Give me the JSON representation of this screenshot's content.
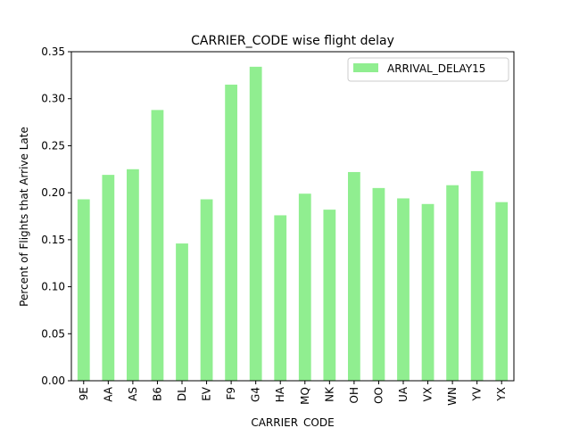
{
  "chart_data": {
    "type": "bar",
    "title": "CARRIER_CODE wise flight delay",
    "xlabel": "CARRIER_CODE",
    "ylabel": "Percent of Flights that Arrive Late",
    "categories": [
      "9E",
      "AA",
      "AS",
      "B6",
      "DL",
      "EV",
      "F9",
      "G4",
      "HA",
      "MQ",
      "NK",
      "OH",
      "OO",
      "UA",
      "VX",
      "WN",
      "YV",
      "YX"
    ],
    "series": [
      {
        "name": "ARRIVAL_DELAY15",
        "color": "#90ee90",
        "values": [
          0.193,
          0.219,
          0.225,
          0.288,
          0.146,
          0.193,
          0.315,
          0.334,
          0.176,
          0.199,
          0.182,
          0.222,
          0.205,
          0.194,
          0.188,
          0.208,
          0.223,
          0.19
        ]
      }
    ],
    "ylim": [
      0,
      0.35
    ],
    "yticks": [
      "0.00",
      "0.05",
      "0.10",
      "0.15",
      "0.20",
      "0.25",
      "0.30",
      "0.35"
    ],
    "legend_position": "top-right",
    "grid": false
  }
}
